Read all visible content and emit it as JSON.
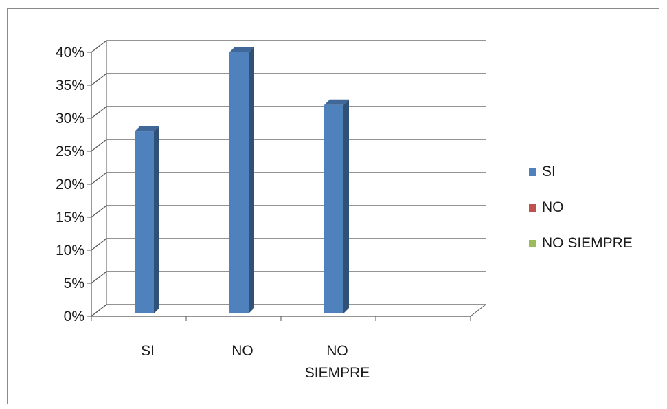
{
  "chart_data": {
    "type": "bar",
    "style": "3d-column",
    "categories": [
      "SI",
      "NO",
      "NO SIEMPRE"
    ],
    "category_labels": [
      [
        "SI"
      ],
      [
        "NO"
      ],
      [
        "NO",
        "SIEMPRE"
      ]
    ],
    "series": [
      {
        "name": "SI",
        "values": [
          28,
          40,
          32
        ],
        "color": "#4f81bd"
      },
      {
        "name": "NO",
        "values": [
          0,
          0,
          0
        ],
        "color": "#c0504d"
      },
      {
        "name": "NO SIEMPRE",
        "values": [
          0,
          0,
          0
        ],
        "color": "#9bbb59"
      }
    ],
    "ylim": [
      0,
      40
    ],
    "yticks": [
      "0%",
      "5%",
      "10%",
      "15%",
      "20%",
      "25%",
      "30%",
      "35%",
      "40%"
    ],
    "grid": true,
    "legend": "right"
  }
}
